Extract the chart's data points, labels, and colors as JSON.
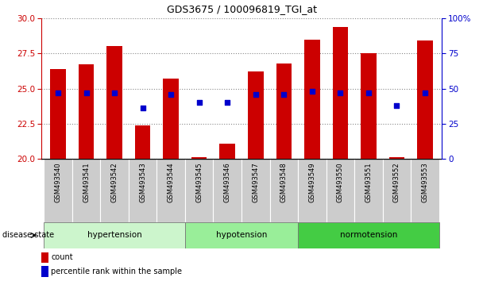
{
  "title": "GDS3675 / 100096819_TGI_at",
  "samples": [
    "GSM493540",
    "GSM493541",
    "GSM493542",
    "GSM493543",
    "GSM493544",
    "GSM493545",
    "GSM493546",
    "GSM493547",
    "GSM493548",
    "GSM493549",
    "GSM493550",
    "GSM493551",
    "GSM493552",
    "GSM493553"
  ],
  "count_values": [
    26.4,
    26.7,
    28.0,
    22.4,
    25.7,
    20.1,
    21.1,
    26.2,
    26.8,
    28.5,
    29.4,
    27.5,
    20.1,
    28.4
  ],
  "percentile_values": [
    47,
    47,
    47,
    36,
    46,
    40,
    40,
    46,
    46,
    48,
    47,
    47,
    38,
    47
  ],
  "ylim_left": [
    20,
    30
  ],
  "ylim_right": [
    0,
    100
  ],
  "yticks_left": [
    20,
    22.5,
    25,
    27.5,
    30
  ],
  "yticks_right": [
    0,
    25,
    50,
    75,
    100
  ],
  "ytick_labels_right": [
    "0",
    "25",
    "50",
    "75",
    "100%"
  ],
  "bar_color": "#cc0000",
  "dot_color": "#0000cc",
  "bar_bottom": 20,
  "bar_width": 0.55,
  "group_hypertension_samples": [
    "GSM493540",
    "GSM493541",
    "GSM493542",
    "GSM493543",
    "GSM493544"
  ],
  "group_hypotension_samples": [
    "GSM493545",
    "GSM493546",
    "GSM493547",
    "GSM493548"
  ],
  "group_normotension_samples": [
    "GSM493549",
    "GSM493550",
    "GSM493551",
    "GSM493552",
    "GSM493553"
  ],
  "group_hypertension_label": "hypertension",
  "group_hypotension_label": "hypotension",
  "group_normotension_label": "normotension",
  "group_hypertension_color": "#ccf5cc",
  "group_hypotension_color": "#99ee99",
  "group_normotension_color": "#44cc44",
  "disease_state_label": "disease state",
  "legend_count_label": "count",
  "legend_percentile_label": "percentile rank within the sample",
  "left_axis_color": "#cc0000",
  "right_axis_color": "#0000cc",
  "grid_color": "#888888",
  "background_plot": "#ffffff",
  "sample_label_bg": "#cccccc",
  "title_fontsize": 9
}
